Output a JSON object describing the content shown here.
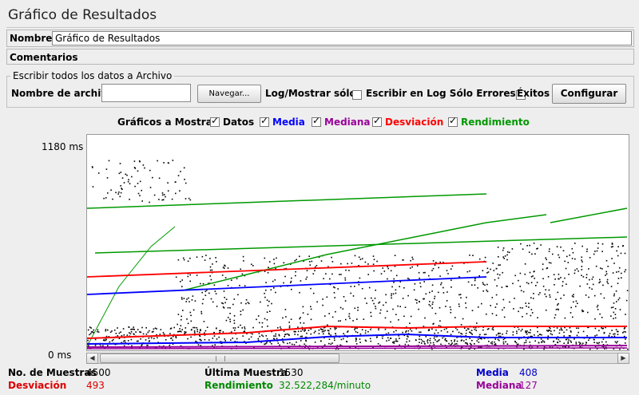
{
  "window": {
    "title": "Gráfico de Resultados"
  },
  "name": {
    "label": "Nombre:",
    "value": "Gráfico de Resultados"
  },
  "comments": {
    "label": "Comentarios"
  },
  "file_section": {
    "legend": "Escribir todos los datos a Archivo",
    "filename_label": "Nombre de archivo",
    "filename_value": "",
    "browse_button": "Navegar...",
    "log_label": "Log/Mostrar sólo:",
    "errors_only_label": "Escribir en Log Sólo Errores",
    "successes_label": "Éxitos",
    "configure_button": "Configurar"
  },
  "graphs": {
    "label": "Gráficos a Mostrar",
    "items": [
      {
        "label": "Datos",
        "checked": true,
        "color": "#000000"
      },
      {
        "label": "Media",
        "checked": true,
        "color": "#0000ff"
      },
      {
        "label": "Mediana",
        "checked": true,
        "color": "#990099"
      },
      {
        "label": "Desviación",
        "checked": true,
        "color": "#ff0000"
      },
      {
        "label": "Rendimiento",
        "checked": true,
        "color": "#009900"
      }
    ]
  },
  "chart_data": {
    "type": "scatter",
    "y_max_label": "1180 ms",
    "y_min_label": "0 ms",
    "ylim": [
      0,
      1180
    ],
    "grid": false,
    "series": [
      {
        "name": "Datos",
        "color": "#000000"
      },
      {
        "name": "Media",
        "color": "#0000ff"
      },
      {
        "name": "Mediana",
        "color": "#990099"
      },
      {
        "name": "Desviación",
        "color": "#ff0000"
      },
      {
        "name": "Rendimiento",
        "color": "#009900"
      }
    ]
  },
  "stats": {
    "samples_label": "No. de Muestras",
    "samples_value": "4500",
    "last_label": "Última Muestra",
    "last_value": "1530",
    "average_label": "Media",
    "average_value": "408",
    "deviation_label": "Desviación",
    "deviation_value": "493",
    "throughput_label": "Rendimiento",
    "throughput_value": "32.522,284/minuto",
    "median_label": "Mediana",
    "median_value": "127"
  }
}
